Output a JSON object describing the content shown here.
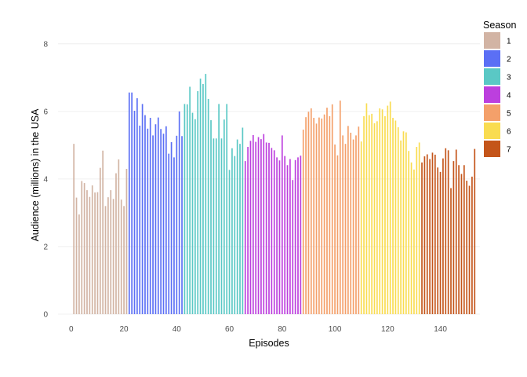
{
  "chart_data": {
    "type": "bar",
    "xlabel": "Episodes",
    "ylabel": "Audience (millions) in the USA",
    "xlim": [
      -5,
      155
    ],
    "ylim": [
      0,
      8.6
    ],
    "x_ticks": [
      0,
      20,
      40,
      60,
      80,
      100,
      120,
      140
    ],
    "y_ticks": [
      0,
      2,
      4,
      6,
      8
    ],
    "grid": true,
    "legend_title": "Season",
    "legend_position": "right",
    "series": [
      {
        "name": "1",
        "color": "#d2b4a4",
        "start": 1,
        "values": [
          5.04,
          3.45,
          2.95,
          3.94,
          3.88,
          3.67,
          3.47,
          3.81,
          3.6,
          3.61,
          4.33,
          4.84,
          3.2,
          3.46,
          3.67,
          3.41,
          4.17,
          4.58,
          3.39,
          3.2,
          4.3
        ]
      },
      {
        "name": "2",
        "color": "#5b6ff5",
        "start": 22,
        "values": [
          6.56,
          6.56,
          6.02,
          6.39,
          5.58,
          6.22,
          5.89,
          5.49,
          5.81,
          5.29,
          5.62,
          5.82,
          5.48,
          5.34,
          5.56,
          4.75,
          5.09,
          4.64,
          5.28,
          6.0,
          5.27
        ]
      },
      {
        "name": "3",
        "color": "#5ac8c5",
        "start": 43,
        "values": [
          6.22,
          6.21,
          6.73,
          5.96,
          5.77,
          6.6,
          6.97,
          6.81,
          7.11,
          6.37,
          5.74,
          5.2,
          5.2,
          6.22,
          5.2,
          5.76,
          6.22,
          4.27,
          4.91,
          4.68,
          5.17,
          5.04,
          5.52
        ]
      },
      {
        "name": "4",
        "color": "#bc3fde",
        "start": 66,
        "values": [
          4.53,
          4.95,
          5.13,
          5.3,
          5.1,
          5.24,
          5.18,
          5.33,
          5.08,
          5.07,
          4.92,
          4.85,
          4.64,
          4.55,
          5.29,
          4.68,
          4.41,
          4.59,
          3.97,
          4.56,
          4.64,
          4.69
        ]
      },
      {
        "name": "5",
        "color": "#f4a06a",
        "start": 88,
        "values": [
          5.46,
          5.83,
          5.99,
          6.09,
          5.81,
          5.64,
          5.82,
          5.79,
          5.91,
          6.11,
          5.86,
          6.21,
          5.02,
          4.7,
          6.32,
          5.29,
          5.04,
          5.57,
          5.37,
          5.17,
          5.29,
          5.55
        ]
      },
      {
        "name": "6",
        "color": "#f9dc50",
        "start": 110,
        "values": [
          5.11,
          5.86,
          6.24,
          5.89,
          5.93,
          5.65,
          5.71,
          6.09,
          6.06,
          5.86,
          6.17,
          6.29,
          5.81,
          5.73,
          5.53,
          5.14,
          5.41,
          5.38,
          4.83,
          4.49,
          4.28,
          4.95,
          5.08
        ]
      },
      {
        "name": "7",
        "color": "#c4551a",
        "start": 133,
        "values": [
          4.49,
          4.67,
          4.73,
          4.59,
          4.78,
          4.72,
          4.34,
          4.21,
          4.61,
          4.91,
          4.85,
          3.73,
          4.53,
          4.87,
          4.41,
          4.15,
          4.41,
          3.95,
          3.8,
          4.07,
          4.89
        ]
      }
    ]
  }
}
